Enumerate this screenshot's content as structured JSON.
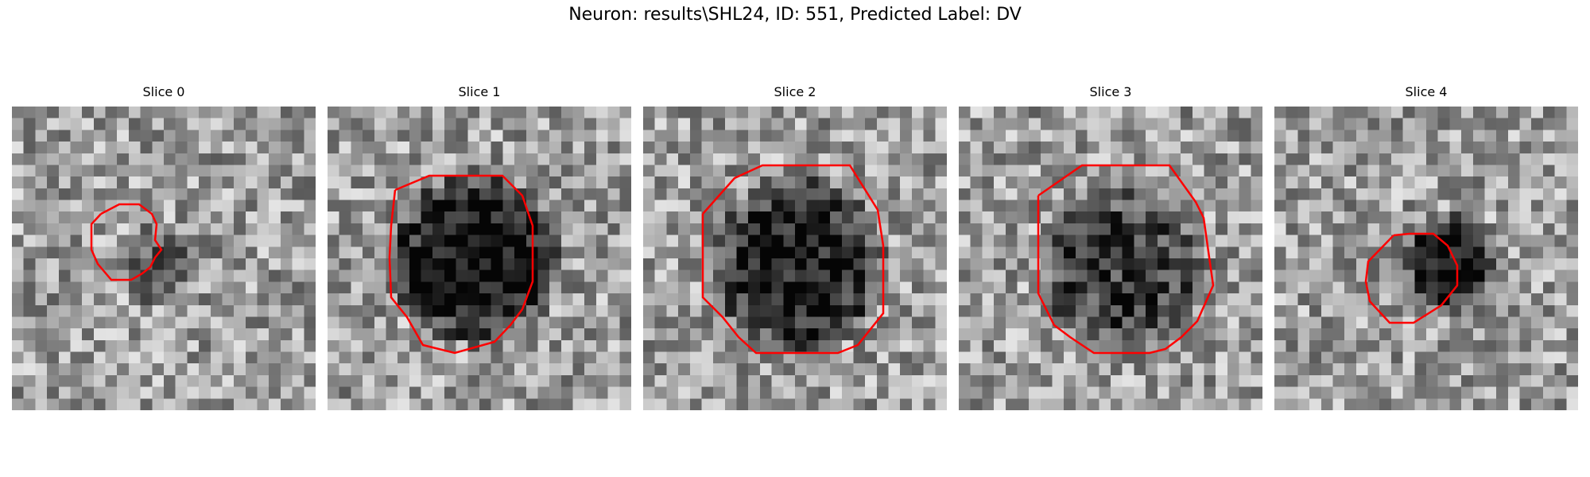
{
  "figure": {
    "title": "Neuron: results\\SHL24, ID: 551, Predicted Label: DV"
  },
  "contour_color": "#ff0000",
  "slices": [
    {
      "label": "Slice 0",
      "seed": 11,
      "blob_center": [
        0.47,
        0.52
      ],
      "blob_radius": 0.15,
      "blob_darkness": 0.3
    },
    {
      "label": "Slice 1",
      "seed": 23,
      "blob_center": [
        0.48,
        0.5
      ],
      "blob_radius": 0.3,
      "blob_darkness": 0.6
    },
    {
      "label": "Slice 2",
      "seed": 37,
      "blob_center": [
        0.51,
        0.52
      ],
      "blob_radius": 0.31,
      "blob_darkness": 0.55
    },
    {
      "label": "Slice 3",
      "seed": 41,
      "blob_center": [
        0.54,
        0.54
      ],
      "blob_radius": 0.3,
      "blob_darkness": 0.4
    },
    {
      "label": "Slice 4",
      "seed": 53,
      "blob_center": [
        0.58,
        0.52
      ],
      "blob_radius": 0.17,
      "blob_darkness": 0.6
    }
  ]
}
